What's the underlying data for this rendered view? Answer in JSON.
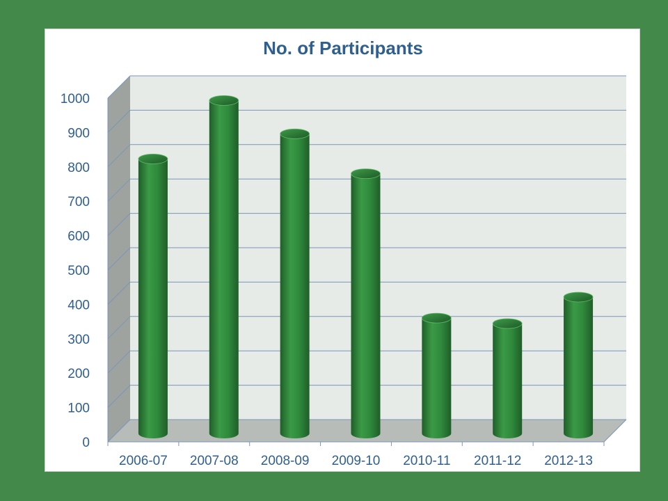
{
  "chart_data": {
    "type": "bar",
    "title": "No. of Participants",
    "xlabel": "",
    "ylabel": "",
    "categories": [
      "2006-07",
      "2007-08",
      "2008-09",
      "2009-10",
      "2010-11",
      "2011-12",
      "2012-13"
    ],
    "values": [
      815,
      985,
      888,
      772,
      352,
      336,
      413
    ],
    "ylim": [
      0,
      1000
    ],
    "yticks": [
      0,
      100,
      200,
      300,
      400,
      500,
      600,
      700,
      800,
      900,
      1000
    ],
    "grid": true,
    "legend": "none",
    "colors": {
      "bar": "#2f8a3c",
      "bar_dark": "#1f5e28",
      "bar_light": "#63b86b",
      "wall": "#e7ebe7",
      "floor": "#b8bcb8",
      "side_wall": "#9ea3a0",
      "grid": "#7a96b9",
      "text": "#2f5f8e",
      "background": "#438a4a"
    }
  }
}
